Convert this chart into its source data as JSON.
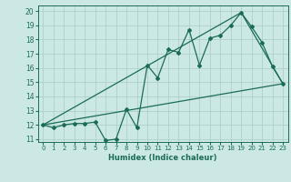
{
  "xlabel": "Humidex (Indice chaleur)",
  "bg_color": "#cce8e4",
  "line_color": "#1a6b5a",
  "grid_color": "#aed0cc",
  "xlim": [
    -0.5,
    23.5
  ],
  "ylim": [
    10.8,
    20.4
  ],
  "xticks": [
    0,
    1,
    2,
    3,
    4,
    5,
    6,
    7,
    8,
    9,
    10,
    11,
    12,
    13,
    14,
    15,
    16,
    17,
    18,
    19,
    20,
    21,
    22,
    23
  ],
  "yticks": [
    11,
    12,
    13,
    14,
    15,
    16,
    17,
    18,
    19,
    20
  ],
  "series1_x": [
    0,
    1,
    2,
    3,
    4,
    5,
    6,
    7,
    8,
    9,
    10,
    11,
    12,
    13,
    14,
    15,
    16,
    17,
    18,
    19,
    20,
    21,
    22,
    23
  ],
  "series1_y": [
    12.0,
    11.8,
    12.0,
    12.1,
    12.1,
    12.2,
    10.9,
    11.0,
    13.1,
    11.8,
    16.2,
    15.3,
    17.3,
    17.1,
    18.7,
    16.2,
    18.1,
    18.3,
    19.0,
    19.9,
    18.9,
    17.8,
    16.1,
    14.9
  ],
  "series2_x": [
    0,
    23
  ],
  "series2_y": [
    12.0,
    14.9
  ],
  "series3_x": [
    0,
    19,
    23
  ],
  "series3_y": [
    12.0,
    19.9,
    14.9
  ]
}
